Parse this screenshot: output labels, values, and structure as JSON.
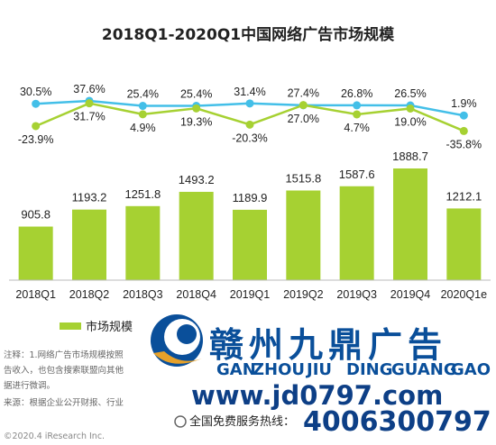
{
  "chart_data": {
    "type": "bar",
    "title": "2018Q1-2020Q1中国网络广告市场规模",
    "categories": [
      "2018Q1",
      "2018Q2",
      "2018Q3",
      "2018Q4",
      "2019Q1",
      "2019Q2",
      "2019Q3",
      "2019Q4",
      "2020Q1e"
    ],
    "series": [
      {
        "name": "市场规模",
        "type": "bar",
        "values": [
          905.8,
          1193.2,
          1251.8,
          1493.2,
          1189.9,
          1515.8,
          1587.6,
          1888.7,
          1212.1
        ],
        "labels": [
          "905.8",
          "1193.2",
          "1251.8",
          "1493.2",
          "1189.9",
          "1515.8",
          "1587.6",
          "1888.7",
          "1212.1"
        ]
      },
      {
        "name": "",
        "type": "line",
        "values": [
          30.5,
          37.6,
          25.4,
          25.4,
          31.4,
          27.0,
          26.8,
          26.5,
          1.9
        ],
        "labels": [
          "30.5%",
          "37.6%",
          "25.4%",
          "25.4%",
          "31.4%",
          "27.0%",
          "26.8%",
          "26.5%",
          "1.9%"
        ]
      },
      {
        "name": "",
        "type": "line",
        "values": [
          -23.9,
          31.7,
          4.9,
          19.3,
          -20.3,
          27.4,
          4.7,
          19.0,
          -35.8
        ],
        "labels": [
          "-23.9%",
          "31.7%",
          "4.9%",
          "19.3%",
          "-20.3%",
          "27.4%",
          "4.7%",
          "19.0%",
          "-35.8%"
        ]
      }
    ],
    "ylim": [
      0,
      2000
    ],
    "grid": false,
    "legend_position": "bottom-left"
  },
  "colors": {
    "bar": "#a6d132",
    "line_yoy": "#43bfe8",
    "line_qoq": "#a6d132"
  },
  "notes": {
    "line1": "注释：1.网络广告市场规模按照",
    "line2": "告收入，也包含搜索联盟向其他",
    "line3": "据进行微调。",
    "line4": "来源：根据企业公开财报、行业"
  },
  "copyright": "©2020.4 iResearch Inc.",
  "watermark": {
    "name": "赣州九鼎广告",
    "pinyin": [
      "GAN",
      "ZHOU",
      "JIU",
      "DING",
      "GUANG",
      "GAO"
    ],
    "url": "www.jd0797.com",
    "hotline_label": "全国免费服务热线：",
    "phone": "4006300797"
  }
}
